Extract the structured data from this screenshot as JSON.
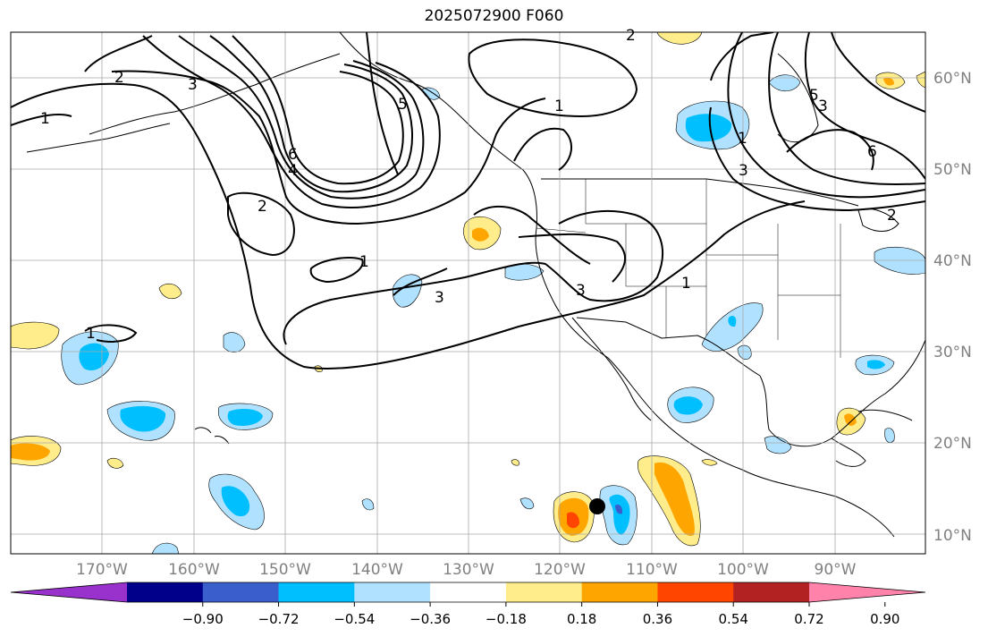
{
  "title": "2025072900 F060",
  "latitude_labels": [
    "60°N",
    "50°N",
    "40°N",
    "30°N",
    "20°N",
    "10°N"
  ],
  "longitude_labels": [
    "170°W",
    "160°W",
    "150°W",
    "140°W",
    "130°W",
    "120°W",
    "110°W",
    "100°W",
    "90°W"
  ],
  "colorbar": {
    "tick_labels": [
      "−0.90",
      "−0.72",
      "−0.54",
      "−0.36",
      "−0.18",
      "0.18",
      "0.36",
      "0.54",
      "0.72",
      "0.90"
    ],
    "colors": [
      "#9932cc",
      "#00008b",
      "#3a5fcd",
      "#00bfff",
      "#b0e2ff",
      "#ffffff",
      "#ffec8b",
      "#ffa500",
      "#ff4500",
      "#b22222",
      "#ff82ab"
    ]
  },
  "contour_labels": [
    "1",
    "2",
    "3",
    "4",
    "5",
    "6",
    "1",
    "2",
    "1",
    "3",
    "2",
    "1",
    "3",
    "3",
    "1",
    "1",
    "6",
    "3",
    "5",
    "2"
  ],
  "marker": "storm-position-dot"
}
